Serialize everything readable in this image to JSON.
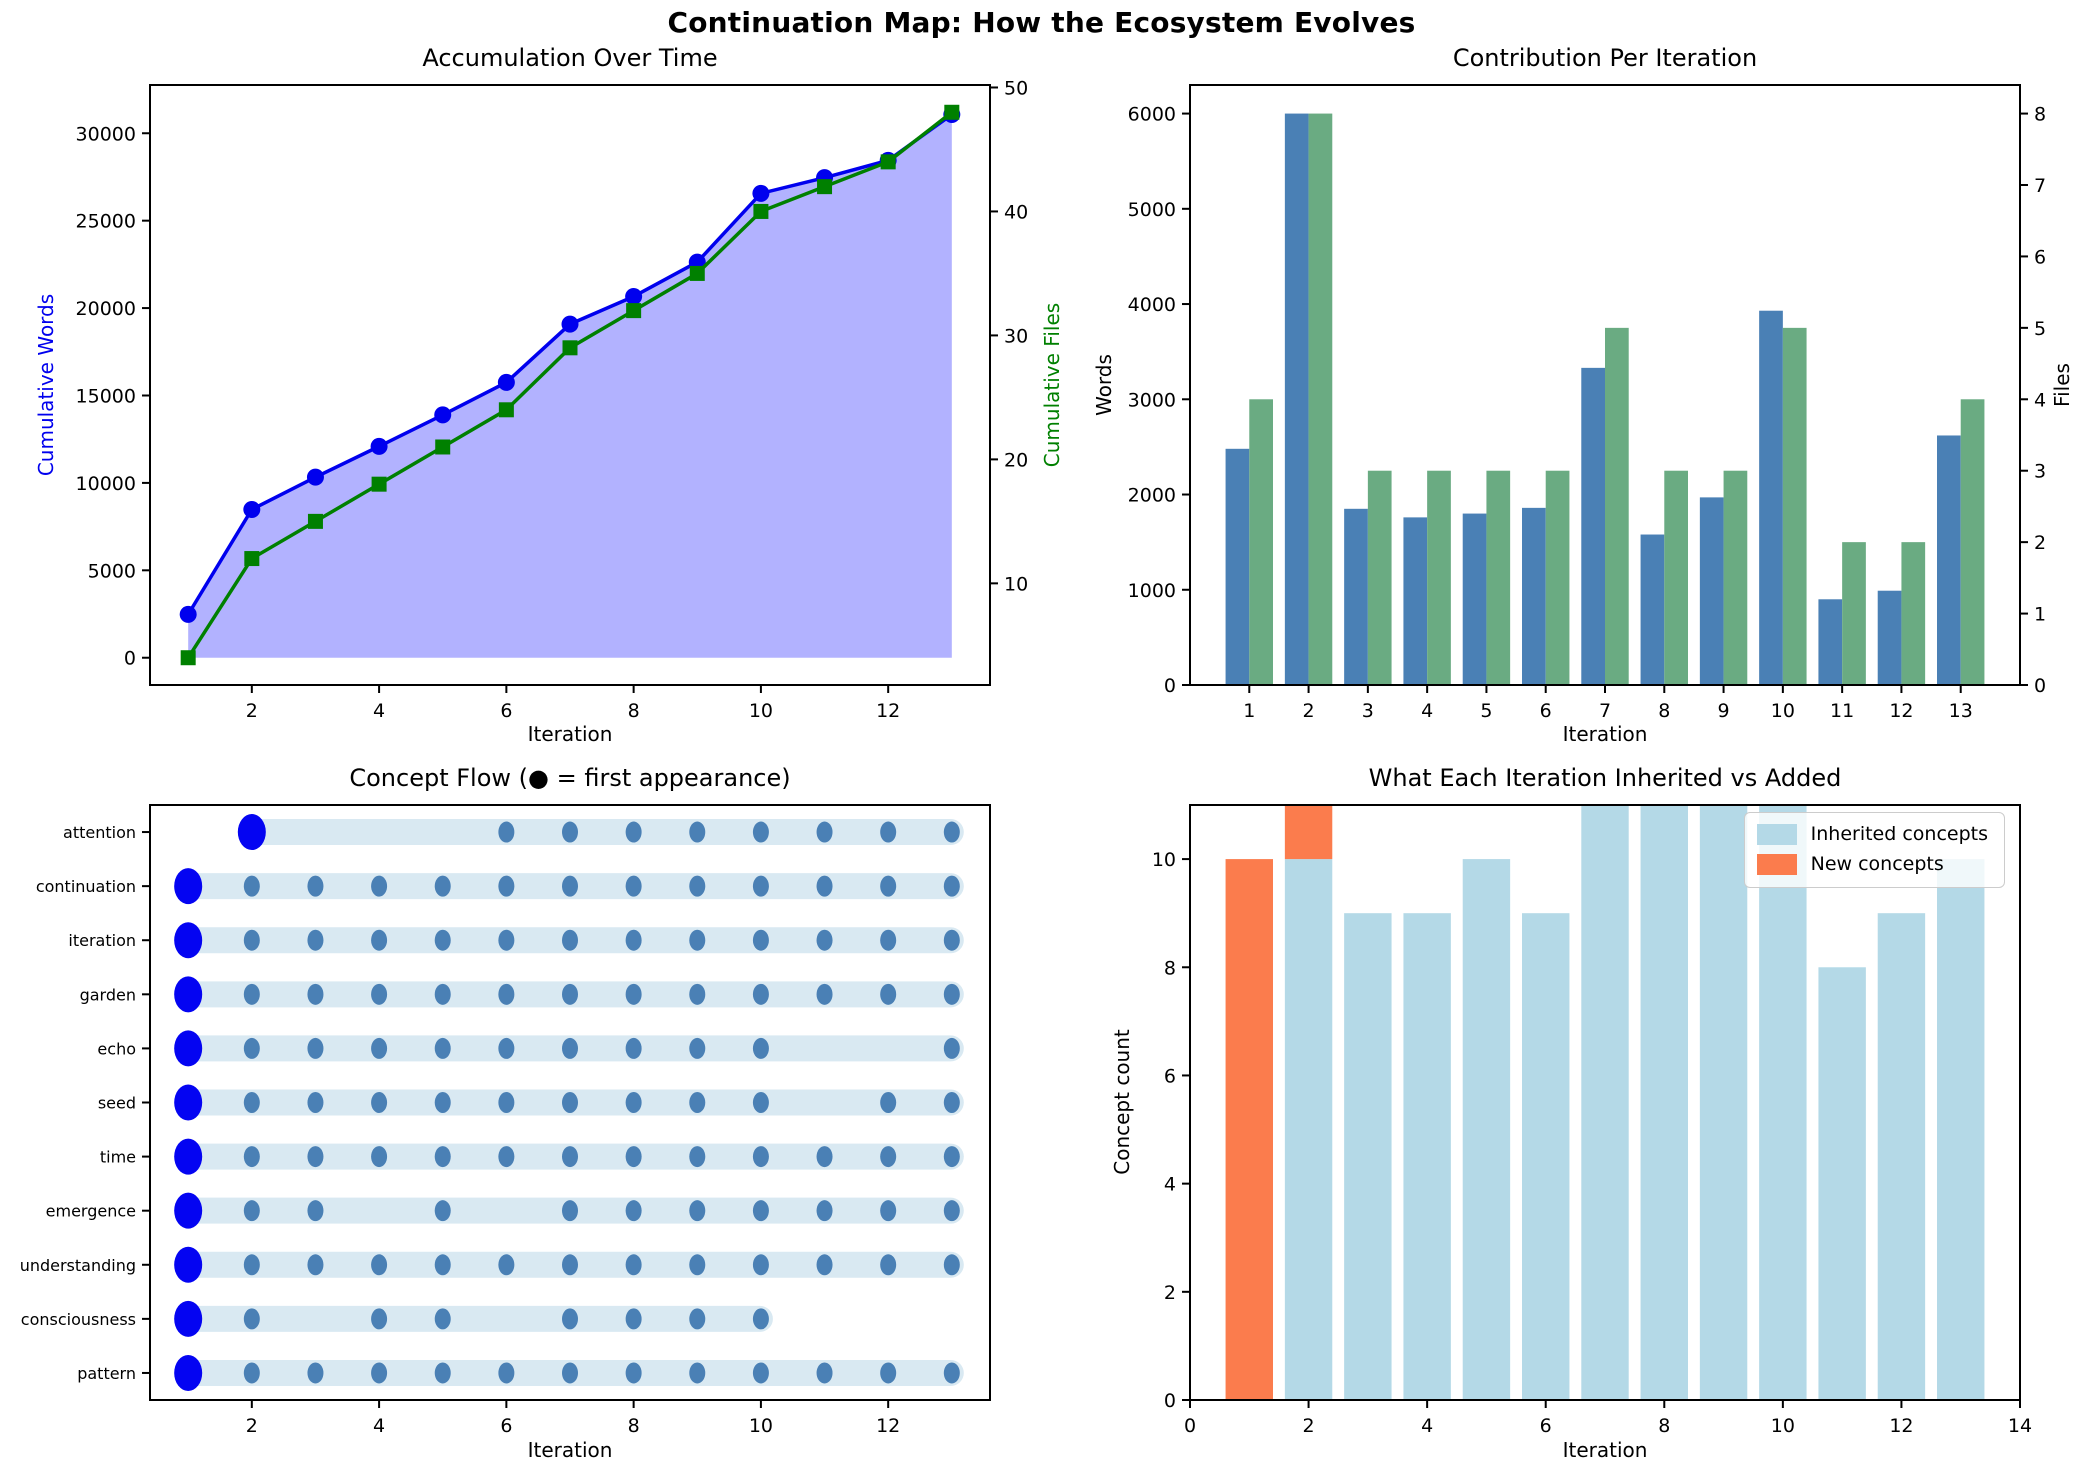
{
  "figure": {
    "suptitle": "Continuation Map: How the Ecosystem Evolves",
    "background": "#ffffff"
  },
  "colors": {
    "text": "#000000",
    "spine": "#000000",
    "cum_words_line": "#0000ee",
    "cum_files_line": "#008000",
    "area_fill": "rgba(0,0,255,0.3)",
    "bar_words": "#4a80b5",
    "bar_files": "#6aab82",
    "flow_band": "#d9e9f2",
    "flow_dot": "#4a80b5",
    "flow_first_dot": "#0404f2",
    "inherited_bar": "#b4d9e7",
    "new_bar": "#fb7c4d"
  },
  "chart_data": [
    {
      "id": "accumulation",
      "type": "area",
      "title": "Accumulation Over Time",
      "xlabel": "Iteration",
      "ylabel_left": "Cumulative Words",
      "ylabel_right": "Cumulative Files",
      "x": [
        1,
        2,
        3,
        4,
        5,
        6,
        7,
        8,
        9,
        10,
        11,
        12,
        13
      ],
      "series": [
        {
          "name": "Cumulative Words",
          "axis": "left",
          "marker": "circle",
          "color": "#0000ee",
          "fill": "rgba(0,0,255,0.3)",
          "fill_to": 0,
          "values": [
            2480,
            8480,
            10330,
            12090,
            13890,
            15750,
            19080,
            20660,
            22630,
            26560,
            27460,
            28450,
            31070
          ]
        },
        {
          "name": "Cumulative Files",
          "axis": "right",
          "marker": "square",
          "color": "#008000",
          "values": [
            4,
            12,
            15,
            18,
            21,
            24,
            29,
            32,
            35,
            40,
            42,
            44,
            48
          ]
        }
      ],
      "xlim": [
        0.4,
        13.6
      ],
      "ylim_left": [
        -1560,
        32760
      ],
      "ylim_right": [
        1.8,
        50.2
      ],
      "xticks": [
        2,
        4,
        6,
        8,
        10,
        12
      ],
      "yticks_left": [
        0,
        5000,
        10000,
        15000,
        20000,
        25000,
        30000
      ],
      "yticks_right": [
        10,
        20,
        30,
        40,
        50
      ],
      "grid": false
    },
    {
      "id": "contribution",
      "type": "bar",
      "title": "Contribution Per Iteration",
      "xlabel": "Iteration",
      "ylabel_left": "Words",
      "ylabel_right": "Files",
      "categories": [
        1,
        2,
        3,
        4,
        5,
        6,
        7,
        8,
        9,
        10,
        11,
        12,
        13
      ],
      "series": [
        {
          "name": "Words",
          "axis": "left",
          "color": "#4a80b5",
          "values": [
            2480,
            6000,
            1850,
            1760,
            1800,
            1860,
            3330,
            1580,
            1970,
            3930,
            900,
            990,
            2620
          ]
        },
        {
          "name": "Files",
          "axis": "right",
          "color": "#6aab82",
          "values": [
            4,
            8,
            3,
            3,
            3,
            3,
            5,
            3,
            3,
            5,
            2,
            2,
            4
          ]
        }
      ],
      "bar_width": 0.4,
      "xlim": [
        0,
        14
      ],
      "ylim_left": [
        0,
        6300
      ],
      "ylim_right": [
        0,
        8.4
      ],
      "xticks": [
        1,
        2,
        3,
        4,
        5,
        6,
        7,
        8,
        9,
        10,
        11,
        12,
        13
      ],
      "yticks_left": [
        0,
        1000,
        2000,
        3000,
        4000,
        5000,
        6000
      ],
      "yticks_right": [
        0,
        1,
        2,
        3,
        4,
        5,
        6,
        7,
        8
      ],
      "grid": false
    },
    {
      "id": "concept_flow",
      "type": "scatter",
      "title": "Concept Flow (● = first appearance)",
      "xlabel": "Iteration",
      "xlim": [
        0.4,
        13.6
      ],
      "xticks": [
        2,
        4,
        6,
        8,
        10,
        12
      ],
      "concepts": [
        {
          "label": "attention",
          "first": 2,
          "present": [
            2,
            6,
            7,
            8,
            9,
            10,
            11,
            12,
            13
          ]
        },
        {
          "label": "continuation",
          "first": 1,
          "present": [
            1,
            2,
            3,
            4,
            5,
            6,
            7,
            8,
            9,
            10,
            11,
            12,
            13
          ]
        },
        {
          "label": "iteration",
          "first": 1,
          "present": [
            1,
            2,
            3,
            4,
            5,
            6,
            7,
            8,
            9,
            10,
            11,
            12,
            13
          ]
        },
        {
          "label": "garden",
          "first": 1,
          "present": [
            1,
            2,
            3,
            4,
            5,
            6,
            7,
            8,
            9,
            10,
            11,
            12,
            13
          ]
        },
        {
          "label": "echo",
          "first": 1,
          "present": [
            1,
            2,
            3,
            4,
            5,
            6,
            7,
            8,
            9,
            10,
            13
          ]
        },
        {
          "label": "seed",
          "first": 1,
          "present": [
            1,
            2,
            3,
            4,
            5,
            6,
            7,
            8,
            9,
            10,
            12,
            13
          ]
        },
        {
          "label": "time",
          "first": 1,
          "present": [
            1,
            2,
            3,
            4,
            5,
            6,
            7,
            8,
            9,
            10,
            11,
            12,
            13
          ]
        },
        {
          "label": "emergence",
          "first": 1,
          "present": [
            1,
            2,
            3,
            5,
            7,
            8,
            9,
            10,
            11,
            12,
            13
          ]
        },
        {
          "label": "understanding",
          "first": 1,
          "present": [
            1,
            2,
            3,
            4,
            5,
            6,
            7,
            8,
            9,
            10,
            11,
            12,
            13
          ]
        },
        {
          "label": "consciousness",
          "first": 1,
          "present": [
            1,
            2,
            4,
            5,
            7,
            8,
            9,
            10
          ]
        },
        {
          "label": "pattern",
          "first": 1,
          "present": [
            1,
            2,
            3,
            4,
            5,
            6,
            7,
            8,
            9,
            10,
            11,
            12,
            13
          ]
        }
      ],
      "grid": false
    },
    {
      "id": "inheritance",
      "type": "bar",
      "stacked": true,
      "title": "What Each Iteration Inherited vs Added",
      "xlabel": "Iteration",
      "ylabel": "Concept count",
      "categories": [
        1,
        2,
        3,
        4,
        5,
        6,
        7,
        8,
        9,
        10,
        11,
        12,
        13
      ],
      "series": [
        {
          "name": "Inherited concepts",
          "color": "#b4d9e7",
          "values": [
            0,
            10,
            9,
            9,
            10,
            9,
            11,
            11,
            11,
            11,
            8,
            9,
            10
          ]
        },
        {
          "name": "New concepts",
          "color": "#fb7c4d",
          "values": [
            10,
            1,
            0,
            0,
            0,
            0,
            0,
            0,
            0,
            0,
            0,
            0,
            0
          ]
        }
      ],
      "bar_width": 0.8,
      "xlim": [
        0,
        14
      ],
      "ylim": [
        0,
        11
      ],
      "xticks": [
        0,
        2,
        4,
        6,
        8,
        10,
        12,
        14
      ],
      "yticks": [
        0,
        2,
        4,
        6,
        8,
        10
      ],
      "legend_position": "upper right",
      "grid": false
    }
  ]
}
